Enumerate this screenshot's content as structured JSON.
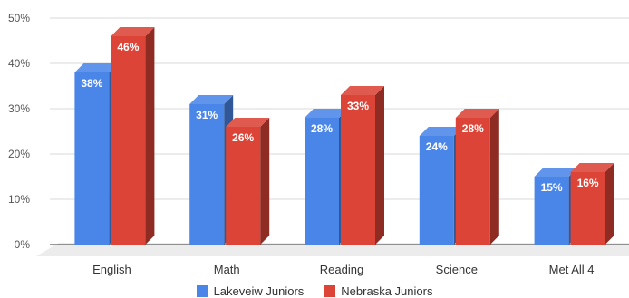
{
  "chart_data": {
    "type": "bar",
    "style": "3d-clustered-column",
    "categories": [
      "English",
      "Math",
      "Reading",
      "Science",
      "Met All 4"
    ],
    "series": [
      {
        "name": "Lakeveiw Juniors",
        "values": [
          38,
          31,
          28,
          24,
          15
        ],
        "labels": [
          "38%",
          "31%",
          "28%",
          "24%",
          "15%"
        ],
        "color": "#4a86e8"
      },
      {
        "name": "Nebraska Juniors",
        "values": [
          46,
          26,
          33,
          28,
          16
        ],
        "labels": [
          "46%",
          "26%",
          "33%",
          "28%",
          "16%"
        ],
        "color": "#db4437"
      }
    ],
    "title": "",
    "xlabel": "",
    "ylabel": "",
    "ylim": [
      0,
      50
    ],
    "yticks": [
      0,
      10,
      20,
      30,
      40,
      50
    ],
    "ytick_labels": [
      "0%",
      "10%",
      "20%",
      "30%",
      "40%",
      "50%"
    ],
    "grid": true,
    "legend_position": "bottom",
    "data_label_color": "#ffffff"
  }
}
